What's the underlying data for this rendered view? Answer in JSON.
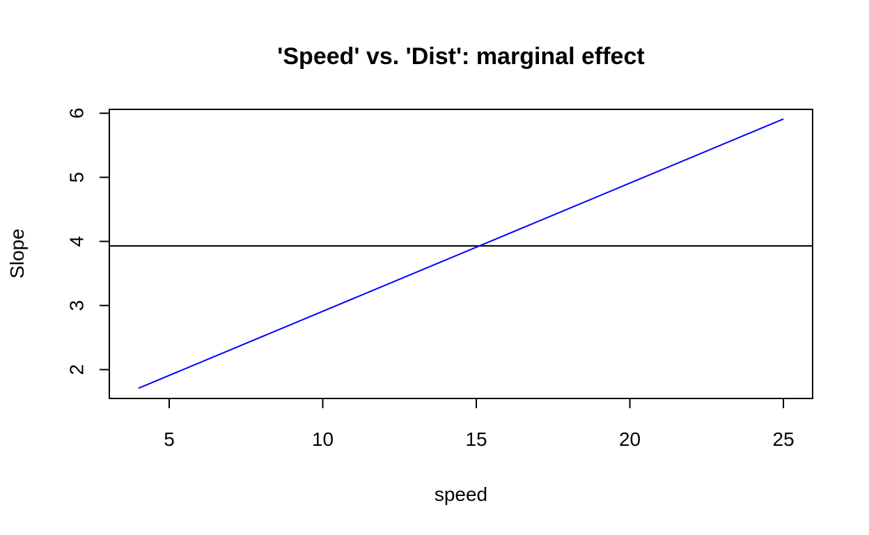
{
  "chart_data": {
    "type": "line",
    "title": "'Speed' vs. 'Dist': marginal effect",
    "xlabel": "speed",
    "ylabel": "Slope",
    "xlim": [
      3.05,
      25.95
    ],
    "ylim": [
      1.55,
      6.06
    ],
    "x_ticks": [
      5,
      10,
      15,
      20,
      25
    ],
    "y_ticks": [
      2,
      3,
      4,
      5,
      6
    ],
    "grid": false,
    "series": [
      {
        "color": "#0000ff",
        "x": [
          4,
          25
        ],
        "y": [
          1.71,
          5.91
        ]
      }
    ],
    "reference_line": {
      "orientation": "horizontal",
      "y": 3.93,
      "color": "#000000"
    }
  }
}
